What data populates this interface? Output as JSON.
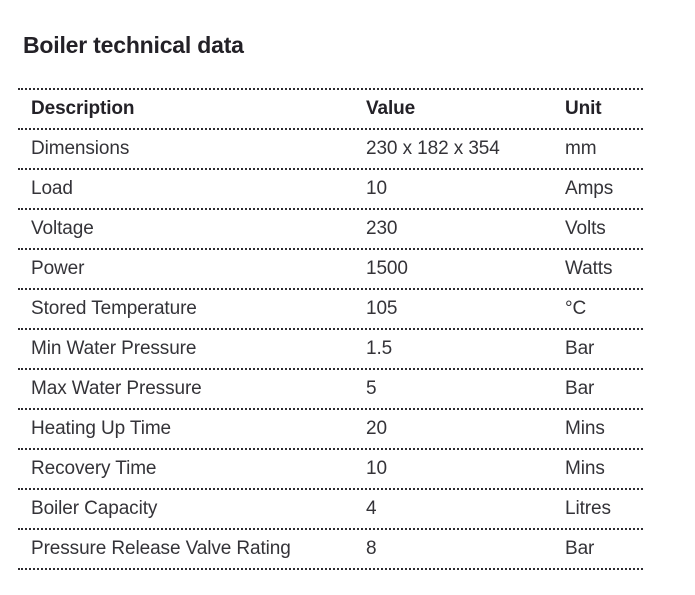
{
  "page": {
    "title": "Boiler technical data",
    "background": "#ffffff",
    "text_color": "#343338",
    "accent_text_color": "#232127",
    "rule_color": "#2e2d31"
  },
  "table": {
    "columns": [
      "Description",
      "Value",
      "Unit"
    ],
    "rows": [
      {
        "description": "Dimensions",
        "value": "230 x 182 x 354",
        "unit": "mm"
      },
      {
        "description": "Load",
        "value": "10",
        "unit": "Amps"
      },
      {
        "description": "Voltage",
        "value": "230",
        "unit": "Volts"
      },
      {
        "description": "Power",
        "value": "1500",
        "unit": "Watts"
      },
      {
        "description": "Stored Temperature",
        "value": "105",
        "unit": "°C"
      },
      {
        "description": "Min Water Pressure",
        "value": "1.5",
        "unit": "Bar"
      },
      {
        "description": "Max Water Pressure",
        "value": "5",
        "unit": "Bar"
      },
      {
        "description": "Heating Up Time",
        "value": "20",
        "unit": "Mins"
      },
      {
        "description": "Recovery Time",
        "value": "10",
        "unit": "Mins"
      },
      {
        "description": "Boiler Capacity",
        "value": "4",
        "unit": "Litres"
      },
      {
        "description": "Pressure Release Valve Rating",
        "value": "8",
        "unit": "Bar"
      }
    ]
  }
}
